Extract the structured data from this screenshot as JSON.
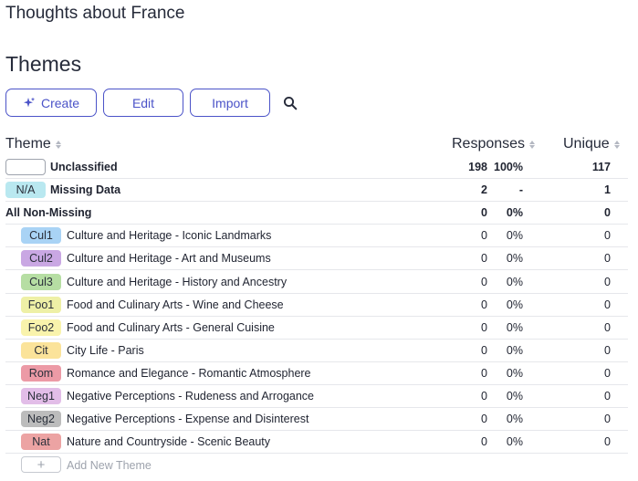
{
  "page": {
    "title": "Thoughts about France"
  },
  "section": {
    "title": "Themes"
  },
  "toolbar": {
    "create_label": "Create",
    "edit_label": "Edit",
    "import_label": "Import"
  },
  "columns": {
    "theme": "Theme",
    "responses": "Responses",
    "unique": "Unique"
  },
  "summary_rows": [
    {
      "badge": "",
      "label": "Unclassified",
      "responses": "198",
      "percent": "100%",
      "unique": "117"
    },
    {
      "badge": "N/A",
      "badge_color": "#b9e8f0",
      "label": "Missing Data",
      "responses": "2",
      "percent": "-",
      "unique": "1"
    },
    {
      "label": "All Non-Missing",
      "responses": "0",
      "percent": "0%",
      "unique": "0"
    }
  ],
  "themes": [
    {
      "code": "Cul1",
      "color": "#a9d3f5",
      "label": "Culture and Heritage - Iconic Landmarks",
      "responses": "0",
      "percent": "0%",
      "unique": "0"
    },
    {
      "code": "Cul2",
      "color": "#c9a7e3",
      "label": "Culture and Heritage - Art and Museums",
      "responses": "0",
      "percent": "0%",
      "unique": "0"
    },
    {
      "code": "Cul3",
      "color": "#b6dea3",
      "label": "Culture and Heritage - History and Ancestry",
      "responses": "0",
      "percent": "0%",
      "unique": "0"
    },
    {
      "code": "Foo1",
      "color": "#eef0a6",
      "label": "Food and Culinary Arts - Wine and Cheese",
      "responses": "0",
      "percent": "0%",
      "unique": "0"
    },
    {
      "code": "Foo2",
      "color": "#f9f3ac",
      "label": "Food and Culinary Arts - General Cuisine",
      "responses": "0",
      "percent": "0%",
      "unique": "0"
    },
    {
      "code": "Cit",
      "color": "#fbe39a",
      "label": "City Life - Paris",
      "responses": "0",
      "percent": "0%",
      "unique": "0"
    },
    {
      "code": "Rom",
      "color": "#ec9aa6",
      "label": "Romance and Elegance - Romantic Atmosphere",
      "responses": "0",
      "percent": "0%",
      "unique": "0"
    },
    {
      "code": "Neg1",
      "color": "#e2bde8",
      "label": "Negative Perceptions - Rudeness and Arrogance",
      "responses": "0",
      "percent": "0%",
      "unique": "0"
    },
    {
      "code": "Neg2",
      "color": "#bcbcbc",
      "label": "Negative Perceptions - Expense and Disinterest",
      "responses": "0",
      "percent": "0%",
      "unique": "0"
    },
    {
      "code": "Nat",
      "color": "#eca3a3",
      "label": "Nature and Countryside - Scenic Beauty",
      "responses": "0",
      "percent": "0%",
      "unique": "0"
    }
  ],
  "add_theme": {
    "icon": "+",
    "label": "Add New Theme"
  },
  "icons": {
    "create": "sparkle-icon",
    "search": "search-icon",
    "sort": "sort-icon"
  },
  "colors": {
    "accent": "#4b53c8"
  }
}
